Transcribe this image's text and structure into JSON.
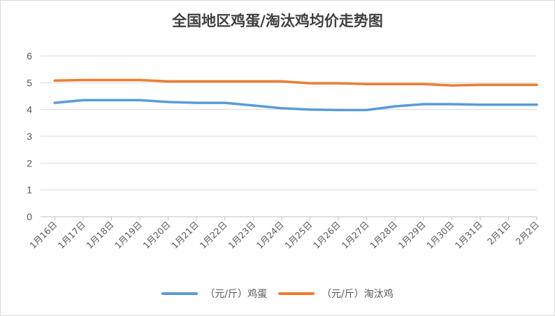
{
  "chart_data": {
    "type": "line",
    "title": "全国地区鸡蛋/淘汰鸡均价走势图",
    "xlabel": "",
    "ylabel": "",
    "ylim": [
      0,
      6
    ],
    "yticks": [
      0,
      1,
      2,
      3,
      4,
      5,
      6
    ],
    "grid": true,
    "legend": "bottom",
    "categories": [
      "1月16日",
      "1月17日",
      "1月18日",
      "1月19日",
      "1月20日",
      "1月21日",
      "1月22日",
      "1月23日",
      "1月24日",
      "1月25日",
      "1月26日",
      "1月27日",
      "1月28日",
      "1月29日",
      "1月30日",
      "1月31日",
      "2月1日",
      "2月2日"
    ],
    "series": [
      {
        "name": "（元/斤）鸡蛋",
        "color": "#5b9bd5",
        "values": [
          4.25,
          4.35,
          4.35,
          4.35,
          4.28,
          4.25,
          4.25,
          4.15,
          4.05,
          4.0,
          3.98,
          3.98,
          4.12,
          4.2,
          4.2,
          4.18,
          4.18,
          4.18
        ]
      },
      {
        "name": "（元/斤）淘汰鸡",
        "color": "#ed7d31",
        "values": [
          5.08,
          5.1,
          5.1,
          5.1,
          5.05,
          5.05,
          5.05,
          5.05,
          5.05,
          4.98,
          4.98,
          4.95,
          4.95,
          4.95,
          4.9,
          4.92,
          4.92,
          4.92
        ]
      }
    ]
  }
}
